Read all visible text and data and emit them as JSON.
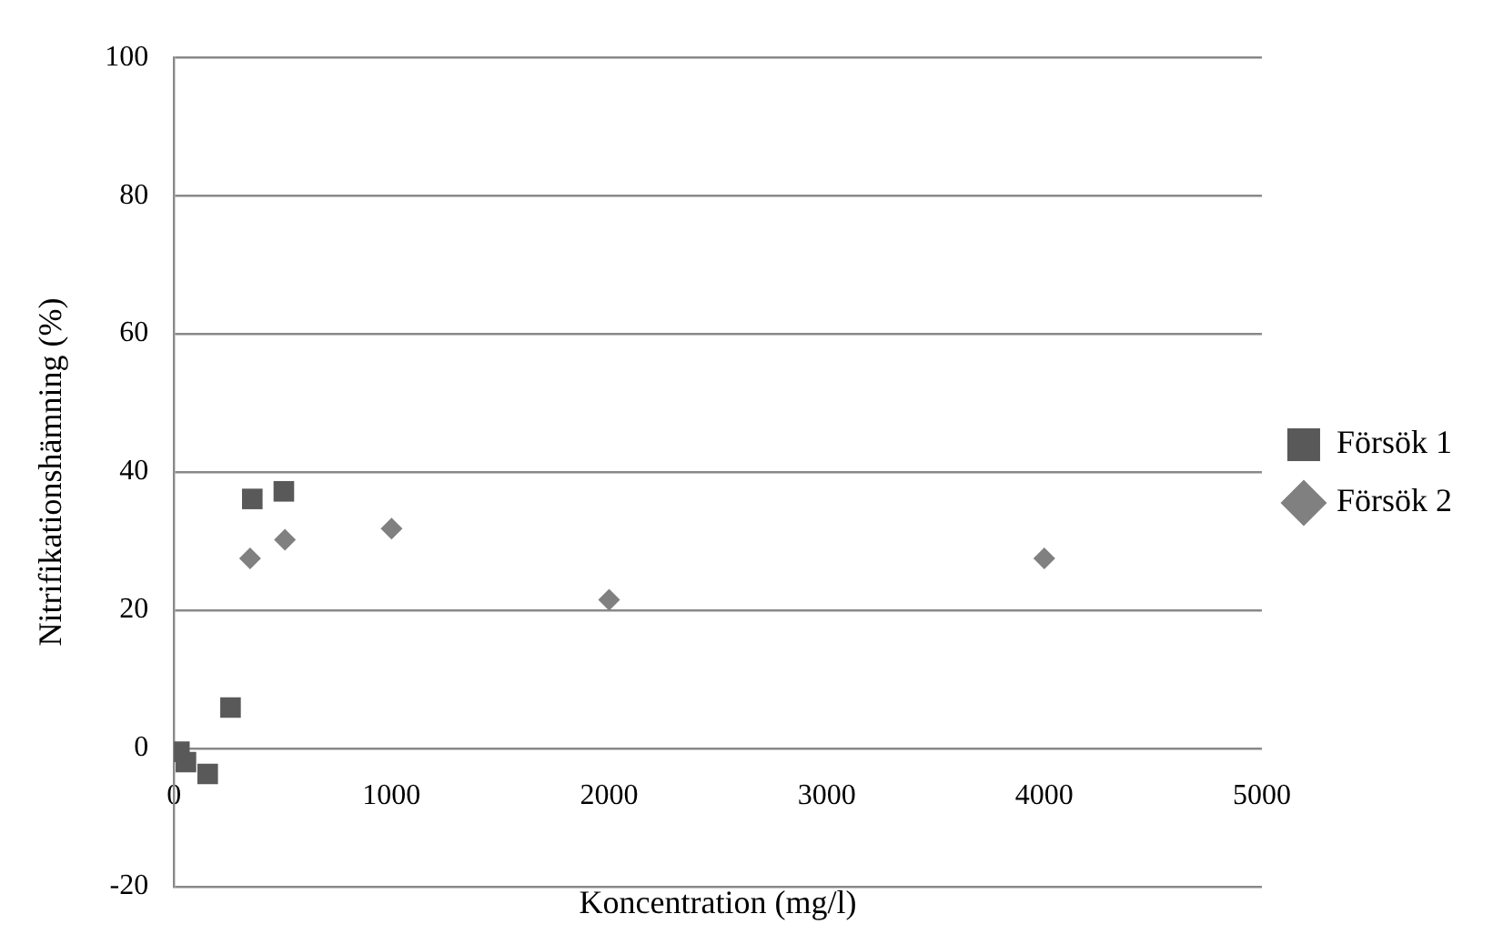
{
  "chart_data": {
    "type": "scatter",
    "xlabel": "Koncentration (mg/l)",
    "ylabel": "Nitrifikationshämning (%)",
    "xlim": [
      0,
      5000
    ],
    "xticks": [
      0,
      1000,
      2000,
      3000,
      4000,
      5000
    ],
    "ylim": [
      -20,
      100
    ],
    "yticks": [
      -20,
      0,
      20,
      40,
      60,
      80,
      100
    ],
    "grid": "y",
    "legend": "right",
    "series": [
      {
        "name": "Försök 1",
        "color": "#595959",
        "marker": "square",
        "x": [
          25,
          55,
          155,
          260,
          360,
          505
        ],
        "values": [
          -0.5,
          -2,
          -3.7,
          5.9,
          36.1,
          37.2
        ]
      },
      {
        "name": "Försök 2",
        "color": "#808080",
        "marker": "diamond",
        "x": [
          350,
          510,
          1000,
          2000,
          4000
        ],
        "values": [
          27.5,
          30.2,
          31.8,
          21.5,
          27.5
        ]
      }
    ]
  }
}
